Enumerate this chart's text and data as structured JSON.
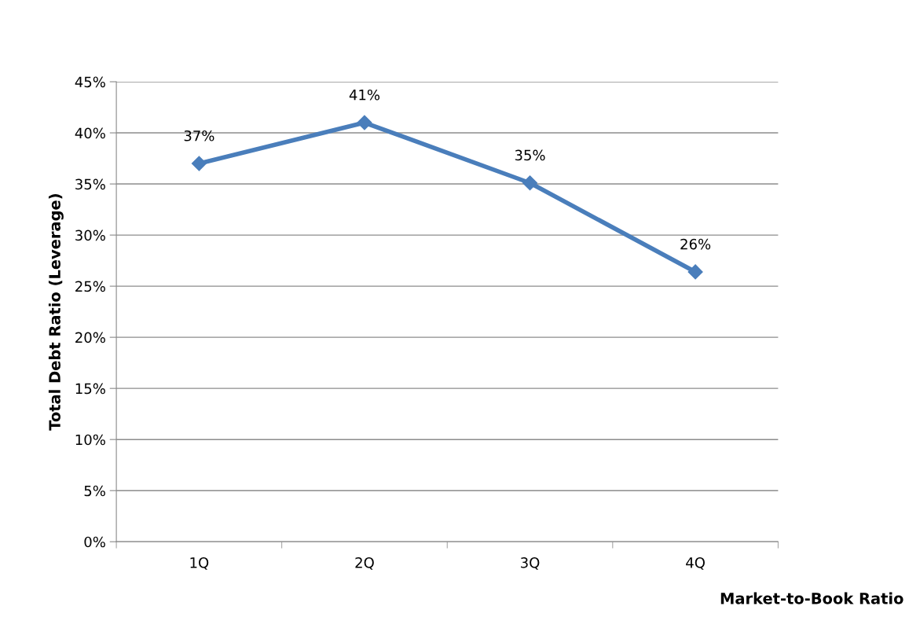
{
  "chart_data": {
    "type": "line",
    "xlabel": "Market-to-Book Ratio",
    "ylabel": "Total Debt Ratio (Leverage)",
    "categories": [
      "1Q",
      "2Q",
      "3Q",
      "4Q"
    ],
    "series": [
      {
        "color": "#4a7ebb",
        "values": [
          37.0,
          41.0,
          35.1,
          26.4
        ],
        "value_labels": [
          "37%",
          "41%",
          "35%",
          "26%"
        ]
      }
    ],
    "ylim": [
      0,
      45
    ],
    "yticks": [
      {
        "value": 0,
        "label": "0%"
      },
      {
        "value": 5,
        "label": "5%"
      },
      {
        "value": 10,
        "label": "10%"
      },
      {
        "value": 15,
        "label": "15%"
      },
      {
        "value": 20,
        "label": "20%"
      },
      {
        "value": 25,
        "label": "25%"
      },
      {
        "value": 30,
        "label": "30%"
      },
      {
        "value": 35,
        "label": "35%"
      },
      {
        "value": 40,
        "label": "40%"
      },
      {
        "value": 45,
        "label": "45%"
      }
    ],
    "grid": "y",
    "legend": false,
    "marker": "diamond",
    "line_style": "solid"
  }
}
